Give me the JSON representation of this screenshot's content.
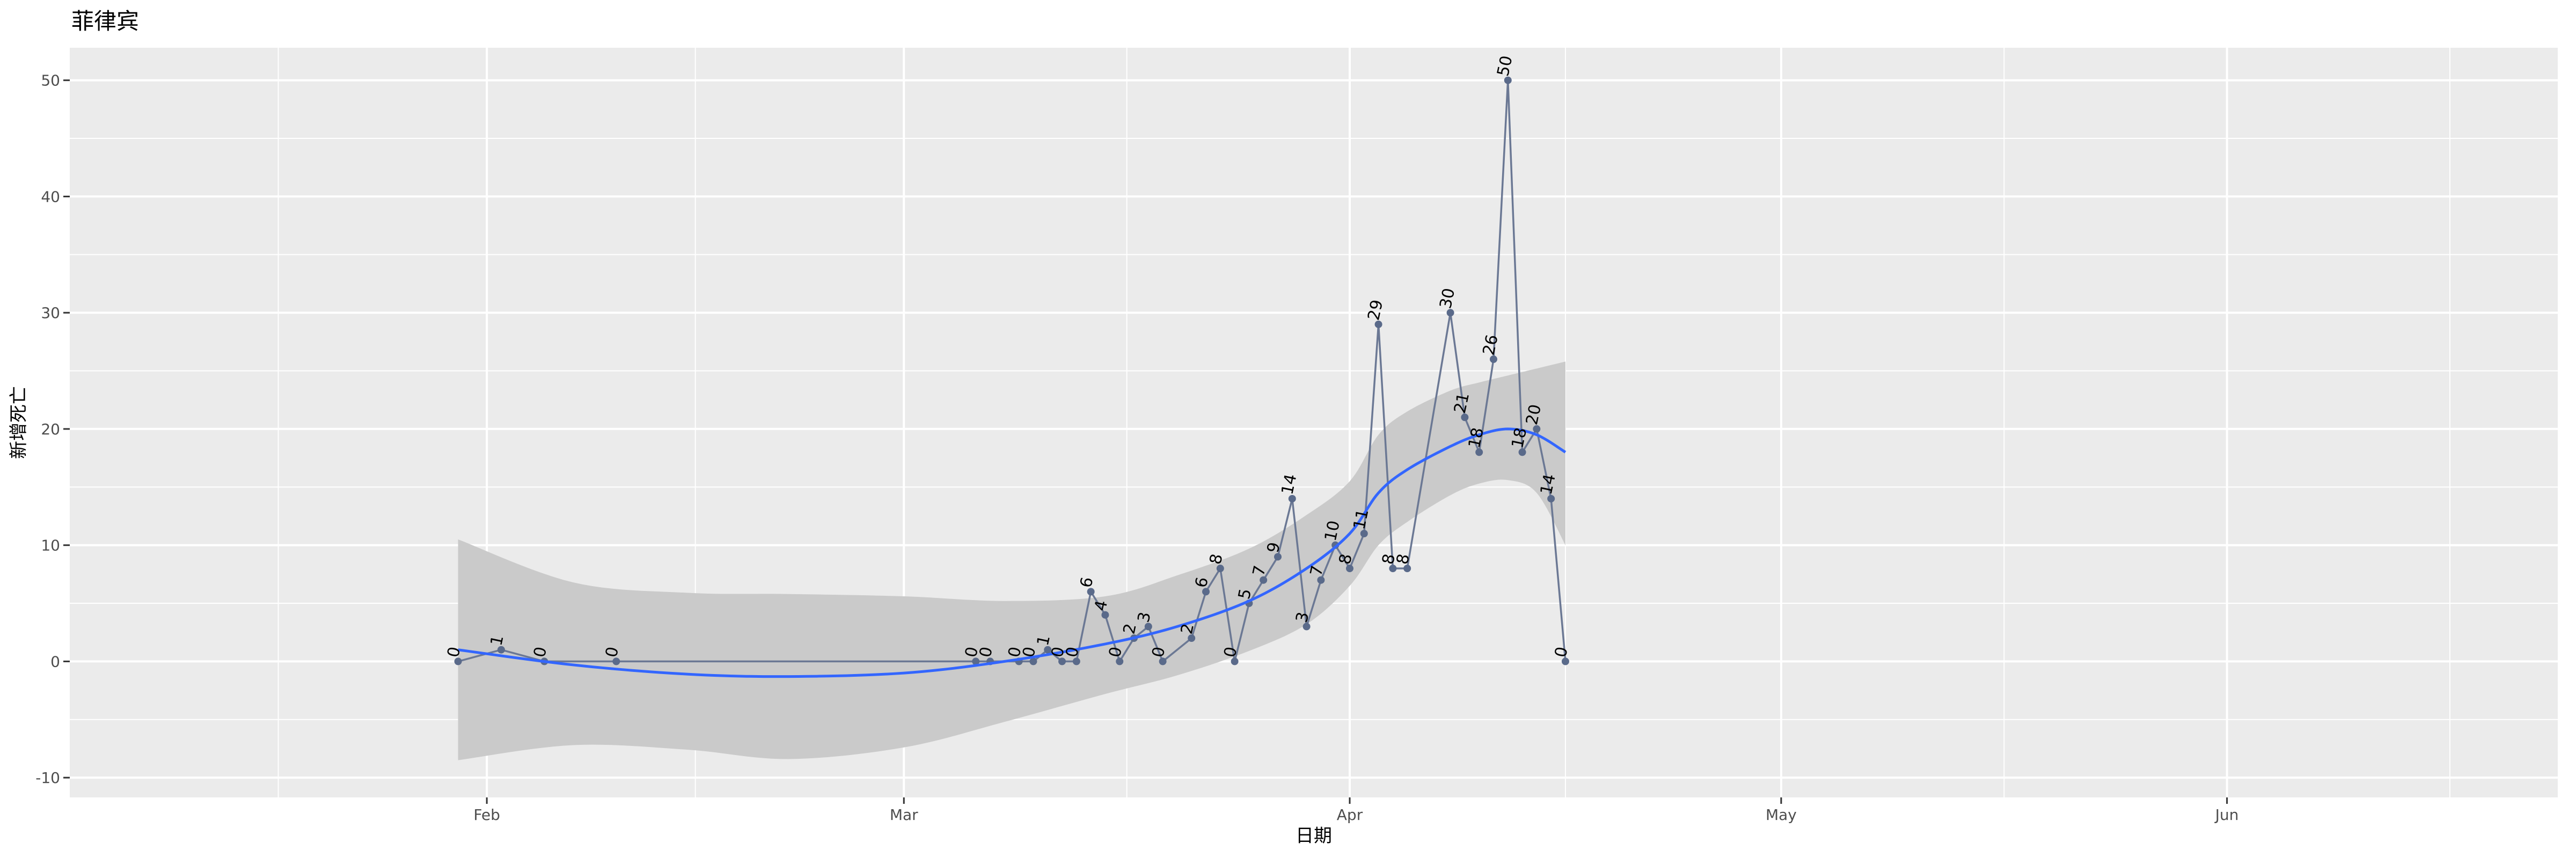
{
  "chart_data": {
    "type": "line",
    "title": "菲律宾",
    "xlabel": "日期",
    "ylabel": "新增死亡",
    "xlim": [
      "2020-01-03",
      "2020-06-24"
    ],
    "ylim": [
      -11.7,
      52.8
    ],
    "x_ticks": [
      {
        "date": "2020-02-01",
        "label": "Feb"
      },
      {
        "date": "2020-03-01",
        "label": "Mar"
      },
      {
        "date": "2020-04-01",
        "label": "Apr"
      },
      {
        "date": "2020-05-01",
        "label": "May"
      },
      {
        "date": "2020-06-01",
        "label": "Jun"
      }
    ],
    "y_ticks": [
      -10,
      0,
      10,
      20,
      30,
      40,
      50
    ],
    "grid": true,
    "series": [
      {
        "points": [
          [
            "2020-01-30",
            0
          ],
          [
            "2020-02-02",
            1
          ],
          [
            "2020-02-05",
            0
          ],
          [
            "2020-02-10",
            0
          ],
          [
            "2020-03-06",
            0
          ],
          [
            "2020-03-07",
            0
          ],
          [
            "2020-03-09",
            0
          ],
          [
            "2020-03-10",
            0
          ],
          [
            "2020-03-11",
            1
          ],
          [
            "2020-03-12",
            0
          ],
          [
            "2020-03-13",
            0
          ],
          [
            "2020-03-14",
            6
          ],
          [
            "2020-03-15",
            4
          ],
          [
            "2020-03-16",
            0
          ],
          [
            "2020-03-17",
            2
          ],
          [
            "2020-03-18",
            3
          ],
          [
            "2020-03-19",
            0
          ],
          [
            "2020-03-21",
            2
          ],
          [
            "2020-03-22",
            6
          ],
          [
            "2020-03-23",
            8
          ],
          [
            "2020-03-24",
            0
          ],
          [
            "2020-03-25",
            5
          ],
          [
            "2020-03-26",
            7
          ],
          [
            "2020-03-27",
            9
          ],
          [
            "2020-03-28",
            14
          ],
          [
            "2020-03-29",
            3
          ],
          [
            "2020-03-30",
            7
          ],
          [
            "2020-03-31",
            10
          ],
          [
            "2020-04-01",
            8
          ],
          [
            "2020-04-02",
            11
          ],
          [
            "2020-04-03",
            29
          ],
          [
            "2020-04-04",
            8
          ],
          [
            "2020-04-05",
            8
          ],
          [
            "2020-04-08",
            30
          ],
          [
            "2020-04-09",
            21
          ],
          [
            "2020-04-10",
            18
          ],
          [
            "2020-04-11",
            26
          ],
          [
            "2020-04-12",
            50
          ],
          [
            "2020-04-13",
            18
          ],
          [
            "2020-04-14",
            20
          ],
          [
            "2020-04-15",
            14
          ],
          [
            "2020-04-16",
            0
          ]
        ]
      }
    ],
    "smooth": {
      "points": [
        [
          "2020-01-30",
          1.0,
          -8.5,
          10.5
        ],
        [
          "2020-02-07",
          -0.3,
          -7.2,
          6.8
        ],
        [
          "2020-02-15",
          -1.1,
          -7.6,
          5.9
        ],
        [
          "2020-02-22",
          -1.3,
          -8.4,
          5.8
        ],
        [
          "2020-03-01",
          -1.0,
          -7.4,
          5.6
        ],
        [
          "2020-03-08",
          0.0,
          -5.2,
          5.2
        ],
        [
          "2020-03-15",
          1.5,
          -2.8,
          5.6
        ],
        [
          "2020-03-20",
          3.0,
          -1.2,
          7.4
        ],
        [
          "2020-03-25",
          5.2,
          0.9,
          9.7
        ],
        [
          "2020-03-29",
          8.0,
          3.2,
          12.6
        ],
        [
          "2020-04-01",
          11.0,
          6.5,
          15.5
        ],
        [
          "2020-04-03",
          14.5,
          10.0,
          19.5
        ],
        [
          "2020-04-05",
          16.5,
          12.0,
          21.5
        ],
        [
          "2020-04-08",
          18.5,
          14.3,
          23.3
        ],
        [
          "2020-04-10",
          19.5,
          15.3,
          24.0
        ],
        [
          "2020-04-12",
          20.0,
          15.6,
          24.6
        ],
        [
          "2020-04-14",
          19.5,
          14.5,
          25.2
        ],
        [
          "2020-04-16",
          18.0,
          10.0,
          25.8
        ]
      ]
    },
    "colors": {
      "panel": "#ebebeb",
      "grid": "#ffffff",
      "line": "#6b7894",
      "point": "#5a6a8a",
      "smooth": "#3366ff",
      "band": "#cacaca"
    }
  }
}
